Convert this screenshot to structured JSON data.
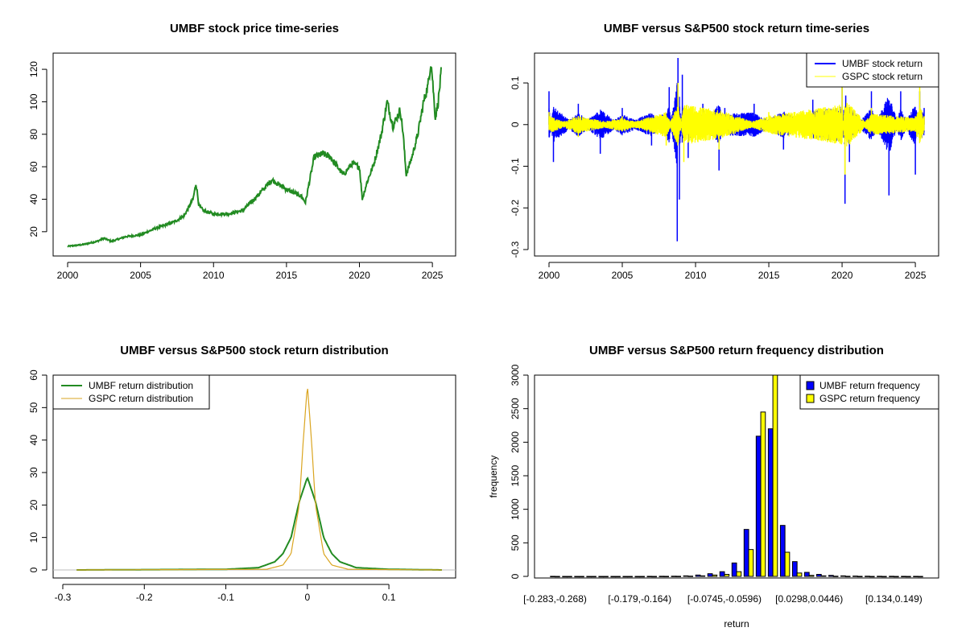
{
  "colors": {
    "umbf_price": "#228B22",
    "umbf_return": "#0000FF",
    "gspc_return": "#FFFF00",
    "umbf_density": "#228B22",
    "gspc_density": "#DAA520",
    "umbf_bar": "#0000FF",
    "gspc_bar": "#FFFF00"
  },
  "chart_data": [
    {
      "id": "price",
      "type": "line",
      "title": "UMBF stock price time-series",
      "xlabel": "",
      "ylabel": "",
      "xlim": [
        2000,
        2025.6
      ],
      "ylim": [
        10,
        125
      ],
      "x_ticks": [
        2000,
        2005,
        2010,
        2015,
        2020,
        2025
      ],
      "y_ticks": [
        20,
        40,
        60,
        80,
        100,
        120
      ],
      "series": [
        {
          "name": "UMBF",
          "x": [
            2000,
            2001,
            2002,
            2002.5,
            2003,
            2004,
            2005,
            2006,
            2007,
            2007.5,
            2008,
            2008.6,
            2008.8,
            2009,
            2009.3,
            2010,
            2011,
            2012,
            2013,
            2014,
            2015,
            2016,
            2016.3,
            2016.9,
            2017.5,
            2018,
            2018.9,
            2019.5,
            2020,
            2020.2,
            2020.5,
            2021,
            2021.5,
            2021.9,
            2022.3,
            2022.8,
            2023,
            2023.2,
            2023.6,
            2024,
            2024.4,
            2024.7,
            2024.9,
            2025,
            2025.2,
            2025.4,
            2025.6
          ],
          "y": [
            11,
            12,
            14,
            16,
            14,
            17,
            18,
            22,
            25,
            27,
            30,
            40,
            50,
            36,
            33,
            31,
            31,
            33,
            42,
            52,
            46,
            42,
            38,
            66,
            68,
            66,
            55,
            62,
            60,
            40,
            50,
            62,
            80,
            100,
            85,
            95,
            80,
            55,
            66,
            80,
            100,
            110,
            125,
            115,
            90,
            100,
            118
          ]
        }
      ]
    },
    {
      "id": "returns",
      "type": "line",
      "title": "UMBF versus S&P500 stock return time-series",
      "xlabel": "",
      "ylabel": "",
      "xlim": [
        2000,
        2025.6
      ],
      "ylim": [
        -0.3,
        0.16
      ],
      "x_ticks": [
        2000,
        2005,
        2010,
        2015,
        2020,
        2025
      ],
      "y_ticks": [
        -0.3,
        -0.2,
        -0.1,
        0.0,
        0.1
      ],
      "legend": [
        "UMBF stock return",
        "GSPC stock return"
      ],
      "legend_position": "top-right",
      "series": [
        {
          "name": "UMBF stock return",
          "x": [
            2000,
            2000.3,
            2002,
            2003.5,
            2005,
            2007,
            2008.2,
            2008.75,
            2008.8,
            2008.9,
            2009.1,
            2009.5,
            2010.5,
            2011.6,
            2012,
            2014,
            2016,
            2018,
            2020,
            2020.2,
            2020.25,
            2020.5,
            2022,
            2023.2,
            2024,
            2025,
            2025.3,
            2025.6
          ],
          "y": [
            0.08,
            -0.09,
            0.05,
            -0.07,
            0.04,
            -0.05,
            0.09,
            -0.28,
            0.16,
            -0.18,
            0.12,
            -0.08,
            0.05,
            -0.11,
            0.04,
            0.05,
            -0.06,
            0.06,
            0.09,
            -0.19,
            0.07,
            -0.09,
            0.08,
            -0.17,
            0.08,
            -0.12,
            0.08,
            0.04
          ]
        },
        {
          "name": "GSPC stock return",
          "x": [
            2000,
            2002,
            2005,
            2008,
            2008.8,
            2009.2,
            2011.6,
            2015,
            2020,
            2020.2,
            2022,
            2025,
            2025.3,
            2025.6
          ],
          "y": [
            0.03,
            -0.03,
            0.02,
            -0.05,
            0.1,
            -0.09,
            -0.06,
            0.03,
            0.09,
            -0.12,
            0.04,
            0.02,
            0.09,
            0.02
          ]
        }
      ]
    },
    {
      "id": "density",
      "type": "line",
      "title": "UMBF versus S&P500 stock return distribution",
      "xlabel": "",
      "ylabel": "",
      "xlim": [
        -0.3,
        0.17
      ],
      "ylim": [
        0,
        60
      ],
      "x_ticks": [
        -0.3,
        -0.2,
        -0.1,
        0.0,
        0.1
      ],
      "y_ticks": [
        0,
        10,
        20,
        30,
        40,
        50,
        60
      ],
      "legend": [
        "UMBF return distribution",
        "GSPC return distribution"
      ],
      "legend_position": "top-left",
      "series": [
        {
          "name": "UMBF return distribution",
          "x": [
            -0.283,
            -0.1,
            -0.06,
            -0.04,
            -0.03,
            -0.02,
            -0.01,
            0.0,
            0.01,
            0.02,
            0.03,
            0.04,
            0.06,
            0.1,
            0.165
          ],
          "y": [
            0,
            0.2,
            0.7,
            2.5,
            5,
            10,
            21,
            28.5,
            21,
            10,
            5,
            2.5,
            0.7,
            0.2,
            0
          ]
        },
        {
          "name": "GSPC return distribution",
          "x": [
            -0.283,
            -0.05,
            -0.03,
            -0.02,
            -0.01,
            -0.005,
            0.0,
            0.005,
            0.01,
            0.02,
            0.03,
            0.05,
            0.165
          ],
          "y": [
            0,
            0.2,
            1.5,
            5,
            20,
            40,
            57,
            40,
            20,
            5,
            1.5,
            0.2,
            0
          ]
        }
      ]
    },
    {
      "id": "histogram",
      "type": "bar",
      "title": "UMBF versus S&P500 return frequency distribution",
      "xlabel": "return",
      "ylabel": "frequency",
      "ylim": [
        0,
        3000
      ],
      "y_ticks": [
        0,
        500,
        1000,
        1500,
        2000,
        2500,
        3000
      ],
      "category_labels": [
        "[-0.283,-0.268)",
        "[-0.179,-0.164)",
        "[-0.0745,-0.0596)",
        "[0.0298,0.0446)",
        "[0.134,0.149)"
      ],
      "category_label_bins": [
        0,
        7,
        14,
        21,
        28
      ],
      "legend": [
        "UMBF return frequency",
        "GSPC return frequency"
      ],
      "legend_position": "top-right",
      "series": [
        {
          "name": "UMBF return frequency",
          "values": [
            1,
            0,
            0,
            0,
            0,
            0,
            0,
            0,
            1,
            2,
            3,
            8,
            20,
            40,
            70,
            200,
            700,
            2090,
            2200,
            760,
            220,
            60,
            30,
            15,
            8,
            5,
            3,
            2,
            2,
            1,
            1
          ]
        },
        {
          "name": "GSPC return frequency",
          "values": [
            0,
            0,
            0,
            0,
            0,
            0,
            0,
            0,
            0,
            1,
            2,
            4,
            8,
            20,
            30,
            70,
            400,
            2450,
            3000,
            360,
            50,
            15,
            8,
            3,
            2,
            1,
            0,
            0,
            0,
            0,
            0
          ]
        }
      ]
    }
  ]
}
